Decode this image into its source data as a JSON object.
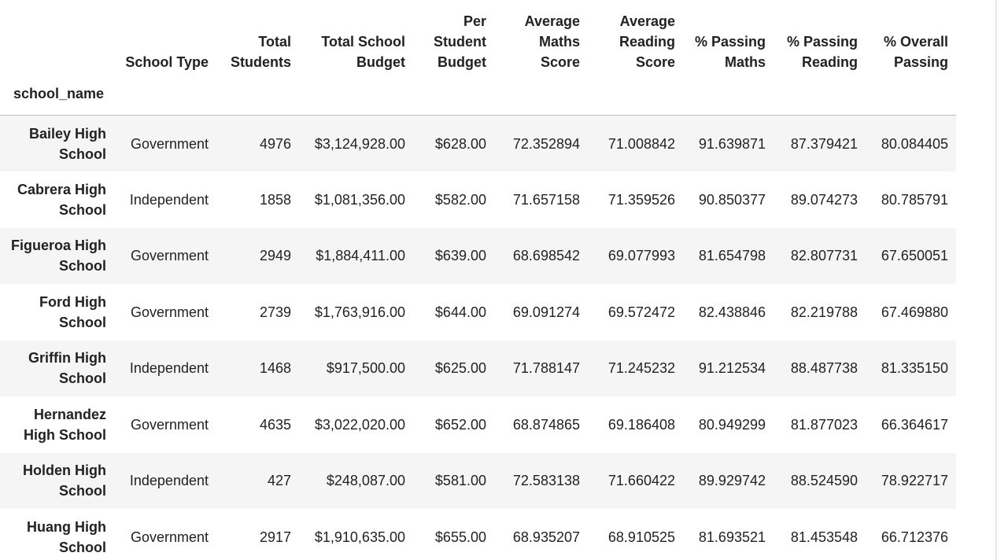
{
  "table": {
    "index_name": "school_name",
    "columns": [
      "School Type",
      "Total Students",
      "Total School Budget",
      "Per Student Budget",
      "Average Maths Score",
      "Average Reading Score",
      "% Passing Maths",
      "% Passing Reading",
      "% Overall Passing"
    ],
    "rows": [
      {
        "school_name": "Bailey High School",
        "values": [
          "Government",
          "4976",
          "$3,124,928.00",
          "$628.00",
          "72.352894",
          "71.008842",
          "91.639871",
          "87.379421",
          "80.084405"
        ]
      },
      {
        "school_name": "Cabrera High School",
        "values": [
          "Independent",
          "1858",
          "$1,081,356.00",
          "$582.00",
          "71.657158",
          "71.359526",
          "90.850377",
          "89.074273",
          "80.785791"
        ]
      },
      {
        "school_name": "Figueroa High School",
        "values": [
          "Government",
          "2949",
          "$1,884,411.00",
          "$639.00",
          "68.698542",
          "69.077993",
          "81.654798",
          "82.807731",
          "67.650051"
        ]
      },
      {
        "school_name": "Ford High School",
        "values": [
          "Government",
          "2739",
          "$1,763,916.00",
          "$644.00",
          "69.091274",
          "69.572472",
          "82.438846",
          "82.219788",
          "67.469880"
        ]
      },
      {
        "school_name": "Griffin High School",
        "values": [
          "Independent",
          "1468",
          "$917,500.00",
          "$625.00",
          "71.788147",
          "71.245232",
          "91.212534",
          "88.487738",
          "81.335150"
        ]
      },
      {
        "school_name": "Hernandez High School",
        "values": [
          "Government",
          "4635",
          "$3,022,020.00",
          "$652.00",
          "68.874865",
          "69.186408",
          "80.949299",
          "81.877023",
          "66.364617"
        ]
      },
      {
        "school_name": "Holden High School",
        "values": [
          "Independent",
          "427",
          "$248,087.00",
          "$581.00",
          "72.583138",
          "71.660422",
          "89.929742",
          "88.524590",
          "78.922717"
        ]
      },
      {
        "school_name": "Huang High School",
        "values": [
          "Government",
          "2917",
          "$1,910,635.00",
          "$655.00",
          "68.935207",
          "68.910525",
          "81.693521",
          "81.453548",
          "66.712376"
        ]
      }
    ]
  },
  "colors": {
    "row_stripe": "#f5f5f5",
    "row_plain": "#ffffff",
    "header_rule": "#bdbdbd",
    "text": "#222222"
  }
}
